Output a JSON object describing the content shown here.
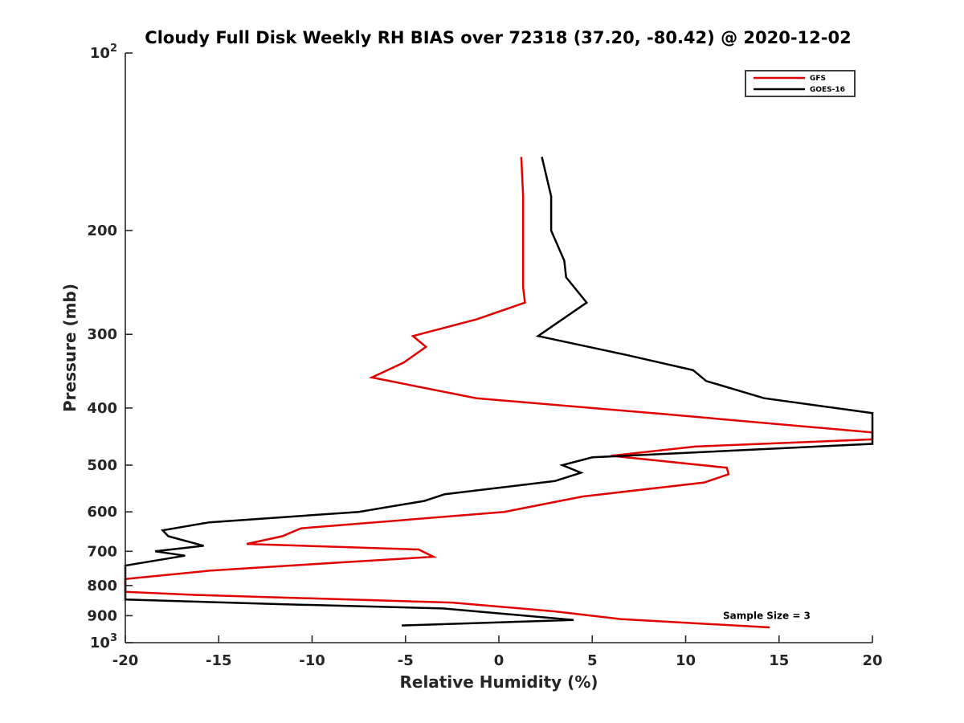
{
  "chart_data": {
    "type": "line",
    "title": "Cloudy Full Disk Weekly RH BIAS over 72318 (37.20, -80.42) @ 2020-12-02",
    "xlabel": "Relative Humidity (%)",
    "ylabel": "Pressure (mb)",
    "xlim": [
      -20,
      20
    ],
    "ylim": [
      100,
      1000
    ],
    "yscale": "log",
    "y_reversed": true,
    "grid": false,
    "legend_position": "top-right",
    "x_ticks": [
      -20,
      -15,
      -10,
      -5,
      0,
      5,
      10,
      15,
      20
    ],
    "x_tick_labels": [
      "-20",
      "-15",
      "-10",
      "-5",
      "0",
      "5",
      "10",
      "15",
      "20"
    ],
    "y_ticks": [
      {
        "value": 100,
        "base": "10",
        "exp": "2"
      },
      {
        "value": 200,
        "label": "200"
      },
      {
        "value": 300,
        "label": "300"
      },
      {
        "value": 400,
        "label": "400"
      },
      {
        "value": 500,
        "label": "500"
      },
      {
        "value": 600,
        "label": "600"
      },
      {
        "value": 700,
        "label": "700"
      },
      {
        "value": 800,
        "label": "800"
      },
      {
        "value": 900,
        "label": "900"
      },
      {
        "value": 1000,
        "base": "10",
        "exp": "3"
      }
    ],
    "series": [
      {
        "name": "GFS",
        "color": "#e00000",
        "points": [
          [
            1.2,
            150
          ],
          [
            1.3,
            175
          ],
          [
            1.3,
            200
          ],
          [
            1.3,
            225
          ],
          [
            1.3,
            250
          ],
          [
            1.4,
            265
          ],
          [
            -1.2,
            283
          ],
          [
            -4.6,
            302
          ],
          [
            -3.9,
            315
          ],
          [
            -5.1,
            335
          ],
          [
            -6.8,
            355
          ],
          [
            -1.2,
            385
          ],
          [
            9.0,
            410
          ],
          [
            20,
            440
          ],
          [
            20,
            452
          ],
          [
            10.5,
            465
          ],
          [
            6.0,
            482
          ],
          [
            12.2,
            505
          ],
          [
            12.3,
            518
          ],
          [
            11.0,
            535
          ],
          [
            4.5,
            565
          ],
          [
            0.3,
            600
          ],
          [
            -10.6,
            640
          ],
          [
            -11.6,
            660
          ],
          [
            -13.5,
            680
          ],
          [
            -4.3,
            695
          ],
          [
            -3.5,
            715
          ],
          [
            -8.2,
            730
          ],
          [
            -15.5,
            755
          ],
          [
            -20,
            780
          ],
          [
            -20,
            820
          ],
          [
            -16.2,
            830
          ],
          [
            -2.5,
            855
          ],
          [
            3.0,
            885
          ],
          [
            6.5,
            912
          ],
          [
            14.5,
            942
          ]
        ]
      },
      {
        "name": "GOES-16",
        "color": "#000000",
        "points": [
          [
            2.3,
            150
          ],
          [
            2.8,
            175
          ],
          [
            2.8,
            200
          ],
          [
            3.5,
            225
          ],
          [
            3.6,
            240
          ],
          [
            4.7,
            265
          ],
          [
            2.1,
            302
          ],
          [
            6.8,
            325
          ],
          [
            10.4,
            345
          ],
          [
            11.1,
            360
          ],
          [
            14.2,
            385
          ],
          [
            20,
            408
          ],
          [
            20,
            460
          ],
          [
            5.0,
            485
          ],
          [
            3.4,
            500
          ],
          [
            4.4,
            515
          ],
          [
            3.0,
            532
          ],
          [
            -2.9,
            560
          ],
          [
            -4.0,
            575
          ],
          [
            -7.5,
            600
          ],
          [
            -15.5,
            625
          ],
          [
            -18.0,
            645
          ],
          [
            -17.7,
            660
          ],
          [
            -15.8,
            685
          ],
          [
            -18.4,
            700
          ],
          [
            -16.8,
            712
          ],
          [
            -20,
            740
          ],
          [
            -20,
            845
          ],
          [
            -12.0,
            860
          ],
          [
            -3.0,
            875
          ],
          [
            4.0,
            915
          ],
          [
            -5.2,
            935
          ]
        ]
      }
    ],
    "annotations": [
      {
        "text": "Sample Size = 3",
        "x": 12.0,
        "y": 900
      }
    ]
  }
}
